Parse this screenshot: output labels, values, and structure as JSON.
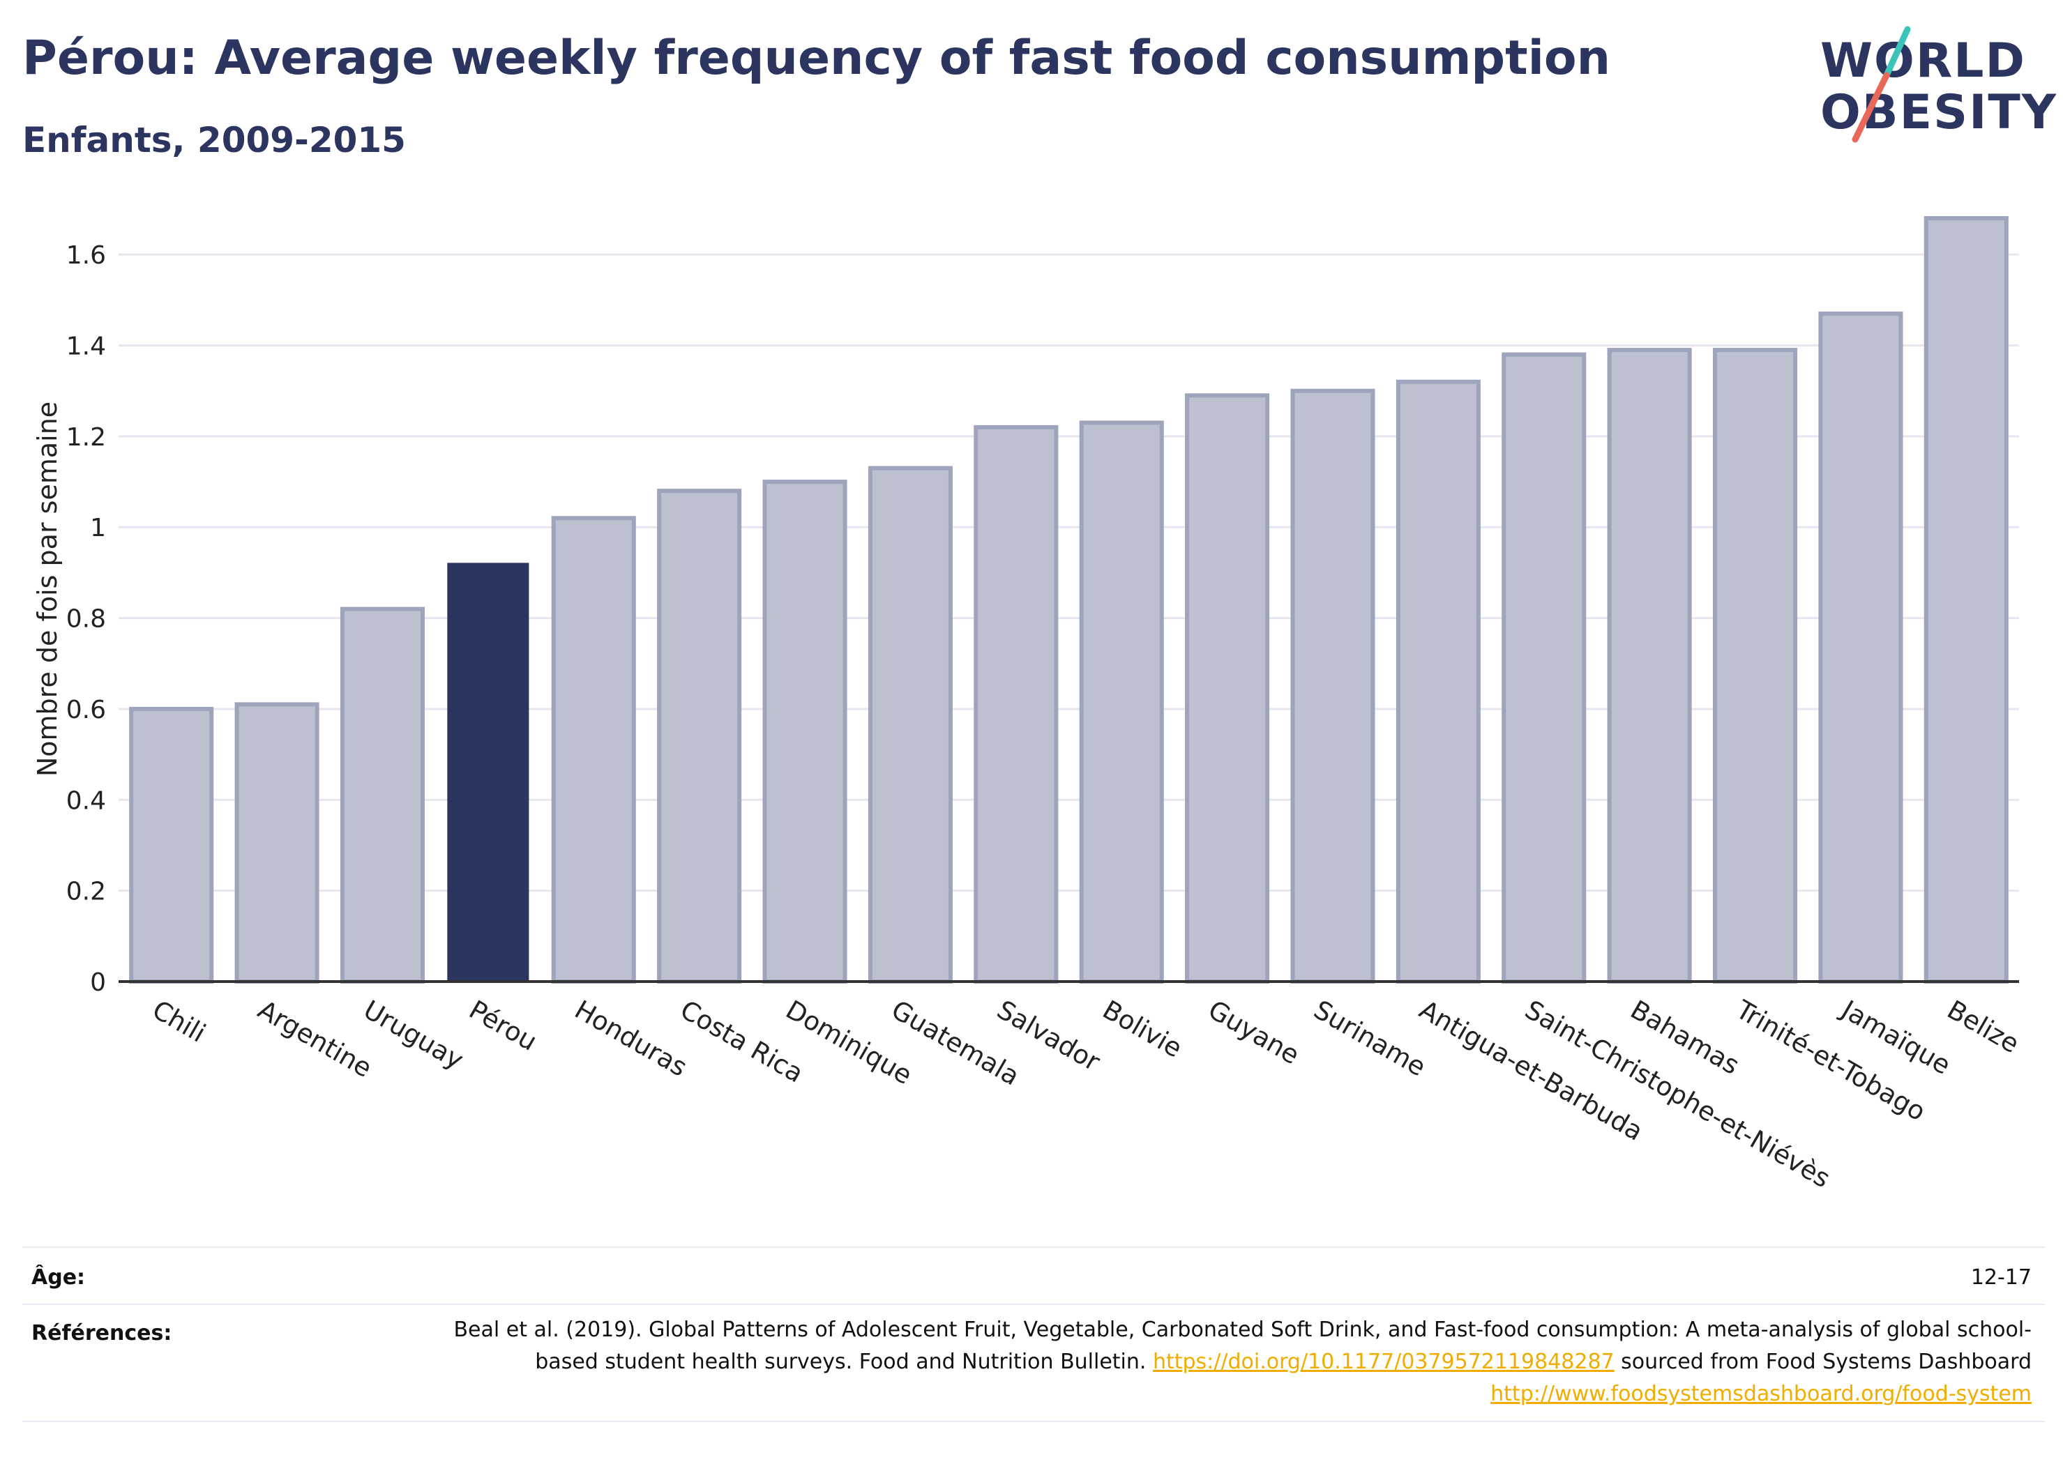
{
  "header": {
    "title": "Pérou: Average weekly frequency of fast food consumption",
    "subtitle": "Enfants, 2009-2015"
  },
  "logo": {
    "line1": "WORLD",
    "line2": "OBESITY",
    "slash_colors": [
      "#3cc4b8",
      "#e8685a"
    ]
  },
  "colors": {
    "highlight": "#2b3560",
    "bar": "#bcc0cf",
    "bar_border": "#9ea4bc",
    "grid": "#e6e7ee",
    "axis": "#333333"
  },
  "chart_data": {
    "type": "bar",
    "title": "Pérou: Average weekly frequency of fast food consumption",
    "subtitle": "Enfants, 2009-2015",
    "xlabel": "",
    "ylabel": "Nombre de fois par semaine",
    "ylim": [
      0,
      1.7
    ],
    "yticks": [
      0,
      0.2,
      0.4,
      0.6,
      0.8,
      1,
      1.2,
      1.4,
      1.6
    ],
    "ytick_labels": [
      "0",
      "0.2",
      "0.4",
      "0.6",
      "0.8",
      "1",
      "1.2",
      "1.4",
      "1.6"
    ],
    "grid": true,
    "highlight": "Pérou",
    "categories": [
      "Chili",
      "Argentine",
      "Uruguay",
      "Pérou",
      "Honduras",
      "Costa Rica",
      "Dominique",
      "Guatemala",
      "Salvador",
      "Bolivie",
      "Guyane",
      "Suriname",
      "Antigua-et-Barbuda",
      "Saint-Christophe-et-Niévès",
      "Bahamas",
      "Trinité-et-Tobago",
      "Jamaïque",
      "Belize"
    ],
    "values": [
      0.6,
      0.61,
      0.82,
      0.92,
      1.02,
      1.08,
      1.1,
      1.13,
      1.22,
      1.23,
      1.29,
      1.3,
      1.32,
      1.38,
      1.39,
      1.39,
      1.47,
      1.68
    ]
  },
  "footer": {
    "age_label": "Âge:",
    "age_value": "12-17",
    "ref_label": "Références:",
    "ref_text_1": "Beal et al. (2019). Global Patterns of Adolescent Fruit, Vegetable, Carbonated Soft Drink, and Fast-food consumption: A meta-analysis of global school-based student health surveys. Food and Nutrition Bulletin. ",
    "ref_link_1": "https://doi.org/10.1177/0379572119848287",
    "ref_text_2": " sourced from Food Systems Dashboard ",
    "ref_link_2": "http://www.foodsystemsdashboard.org/food-system"
  }
}
